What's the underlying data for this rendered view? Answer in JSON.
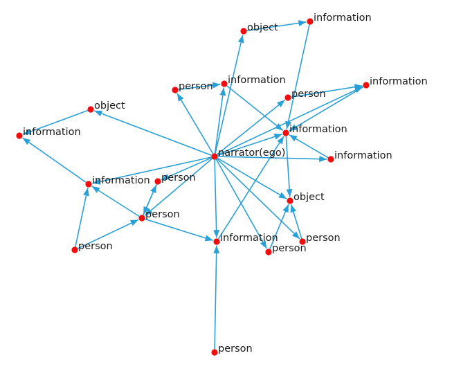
{
  "diagram": {
    "nodes": [
      {
        "id": "narrator",
        "label": "narrator(ego)"
      },
      {
        "id": "object_top",
        "label": "object"
      },
      {
        "id": "info_top_right",
        "label": "information"
      },
      {
        "id": "person_mid_top",
        "label": "person"
      },
      {
        "id": "info_mid_top",
        "label": "information"
      },
      {
        "id": "info_far_right",
        "label": "information"
      },
      {
        "id": "person_right",
        "label": "person"
      },
      {
        "id": "info_center_right",
        "label": "information"
      },
      {
        "id": "object_left",
        "label": "object"
      },
      {
        "id": "info_left",
        "label": "information"
      },
      {
        "id": "info_right_lower",
        "label": "information"
      },
      {
        "id": "info_mid_left",
        "label": "information"
      },
      {
        "id": "person_small",
        "label": "person"
      },
      {
        "id": "person_hub",
        "label": "person"
      },
      {
        "id": "object_right",
        "label": "object"
      },
      {
        "id": "person_bottom_left",
        "label": "person"
      },
      {
        "id": "info_bottom",
        "label": "information"
      },
      {
        "id": "person_lower_right",
        "label": "person"
      },
      {
        "id": "person_lower_mid",
        "label": "person"
      },
      {
        "id": "person_bottom",
        "label": "person"
      }
    ],
    "edges": [
      [
        "narrator",
        "object_top"
      ],
      [
        "narrator",
        "person_mid_top"
      ],
      [
        "narrator",
        "info_mid_top"
      ],
      [
        "narrator",
        "person_right"
      ],
      [
        "narrator",
        "info_center_right"
      ],
      [
        "narrator",
        "object_left"
      ],
      [
        "narrator",
        "info_right_lower"
      ],
      [
        "narrator",
        "info_mid_left"
      ],
      [
        "narrator",
        "person_small"
      ],
      [
        "narrator",
        "object_right"
      ],
      [
        "narrator",
        "info_bottom"
      ],
      [
        "narrator",
        "person_lower_right"
      ],
      [
        "narrator",
        "person_lower_mid"
      ],
      [
        "narrator",
        "person_hub"
      ],
      [
        "object_top",
        "info_top_right"
      ],
      [
        "info_top_right",
        "info_center_right"
      ],
      [
        "person_mid_top",
        "info_mid_top"
      ],
      [
        "info_mid_top",
        "info_center_right"
      ],
      [
        "person_right",
        "info_far_right"
      ],
      [
        "narrator",
        "info_far_right"
      ],
      [
        "info_far_right",
        "info_center_right"
      ],
      [
        "info_right_lower",
        "info_center_right"
      ],
      [
        "info_center_right",
        "object_right"
      ],
      [
        "object_left",
        "info_left"
      ],
      [
        "info_mid_left",
        "info_left"
      ],
      [
        "person_hub",
        "info_mid_left"
      ],
      [
        "person_bottom_left",
        "info_mid_left"
      ],
      [
        "person_bottom_left",
        "person_hub"
      ],
      [
        "person_hub",
        "person_small"
      ],
      [
        "person_small",
        "person_hub"
      ],
      [
        "person_hub",
        "info_bottom"
      ],
      [
        "person_bottom",
        "info_bottom"
      ],
      [
        "person_lower_mid",
        "object_right"
      ],
      [
        "person_lower_right",
        "object_right"
      ],
      [
        "info_bottom",
        "info_center_right"
      ]
    ]
  }
}
